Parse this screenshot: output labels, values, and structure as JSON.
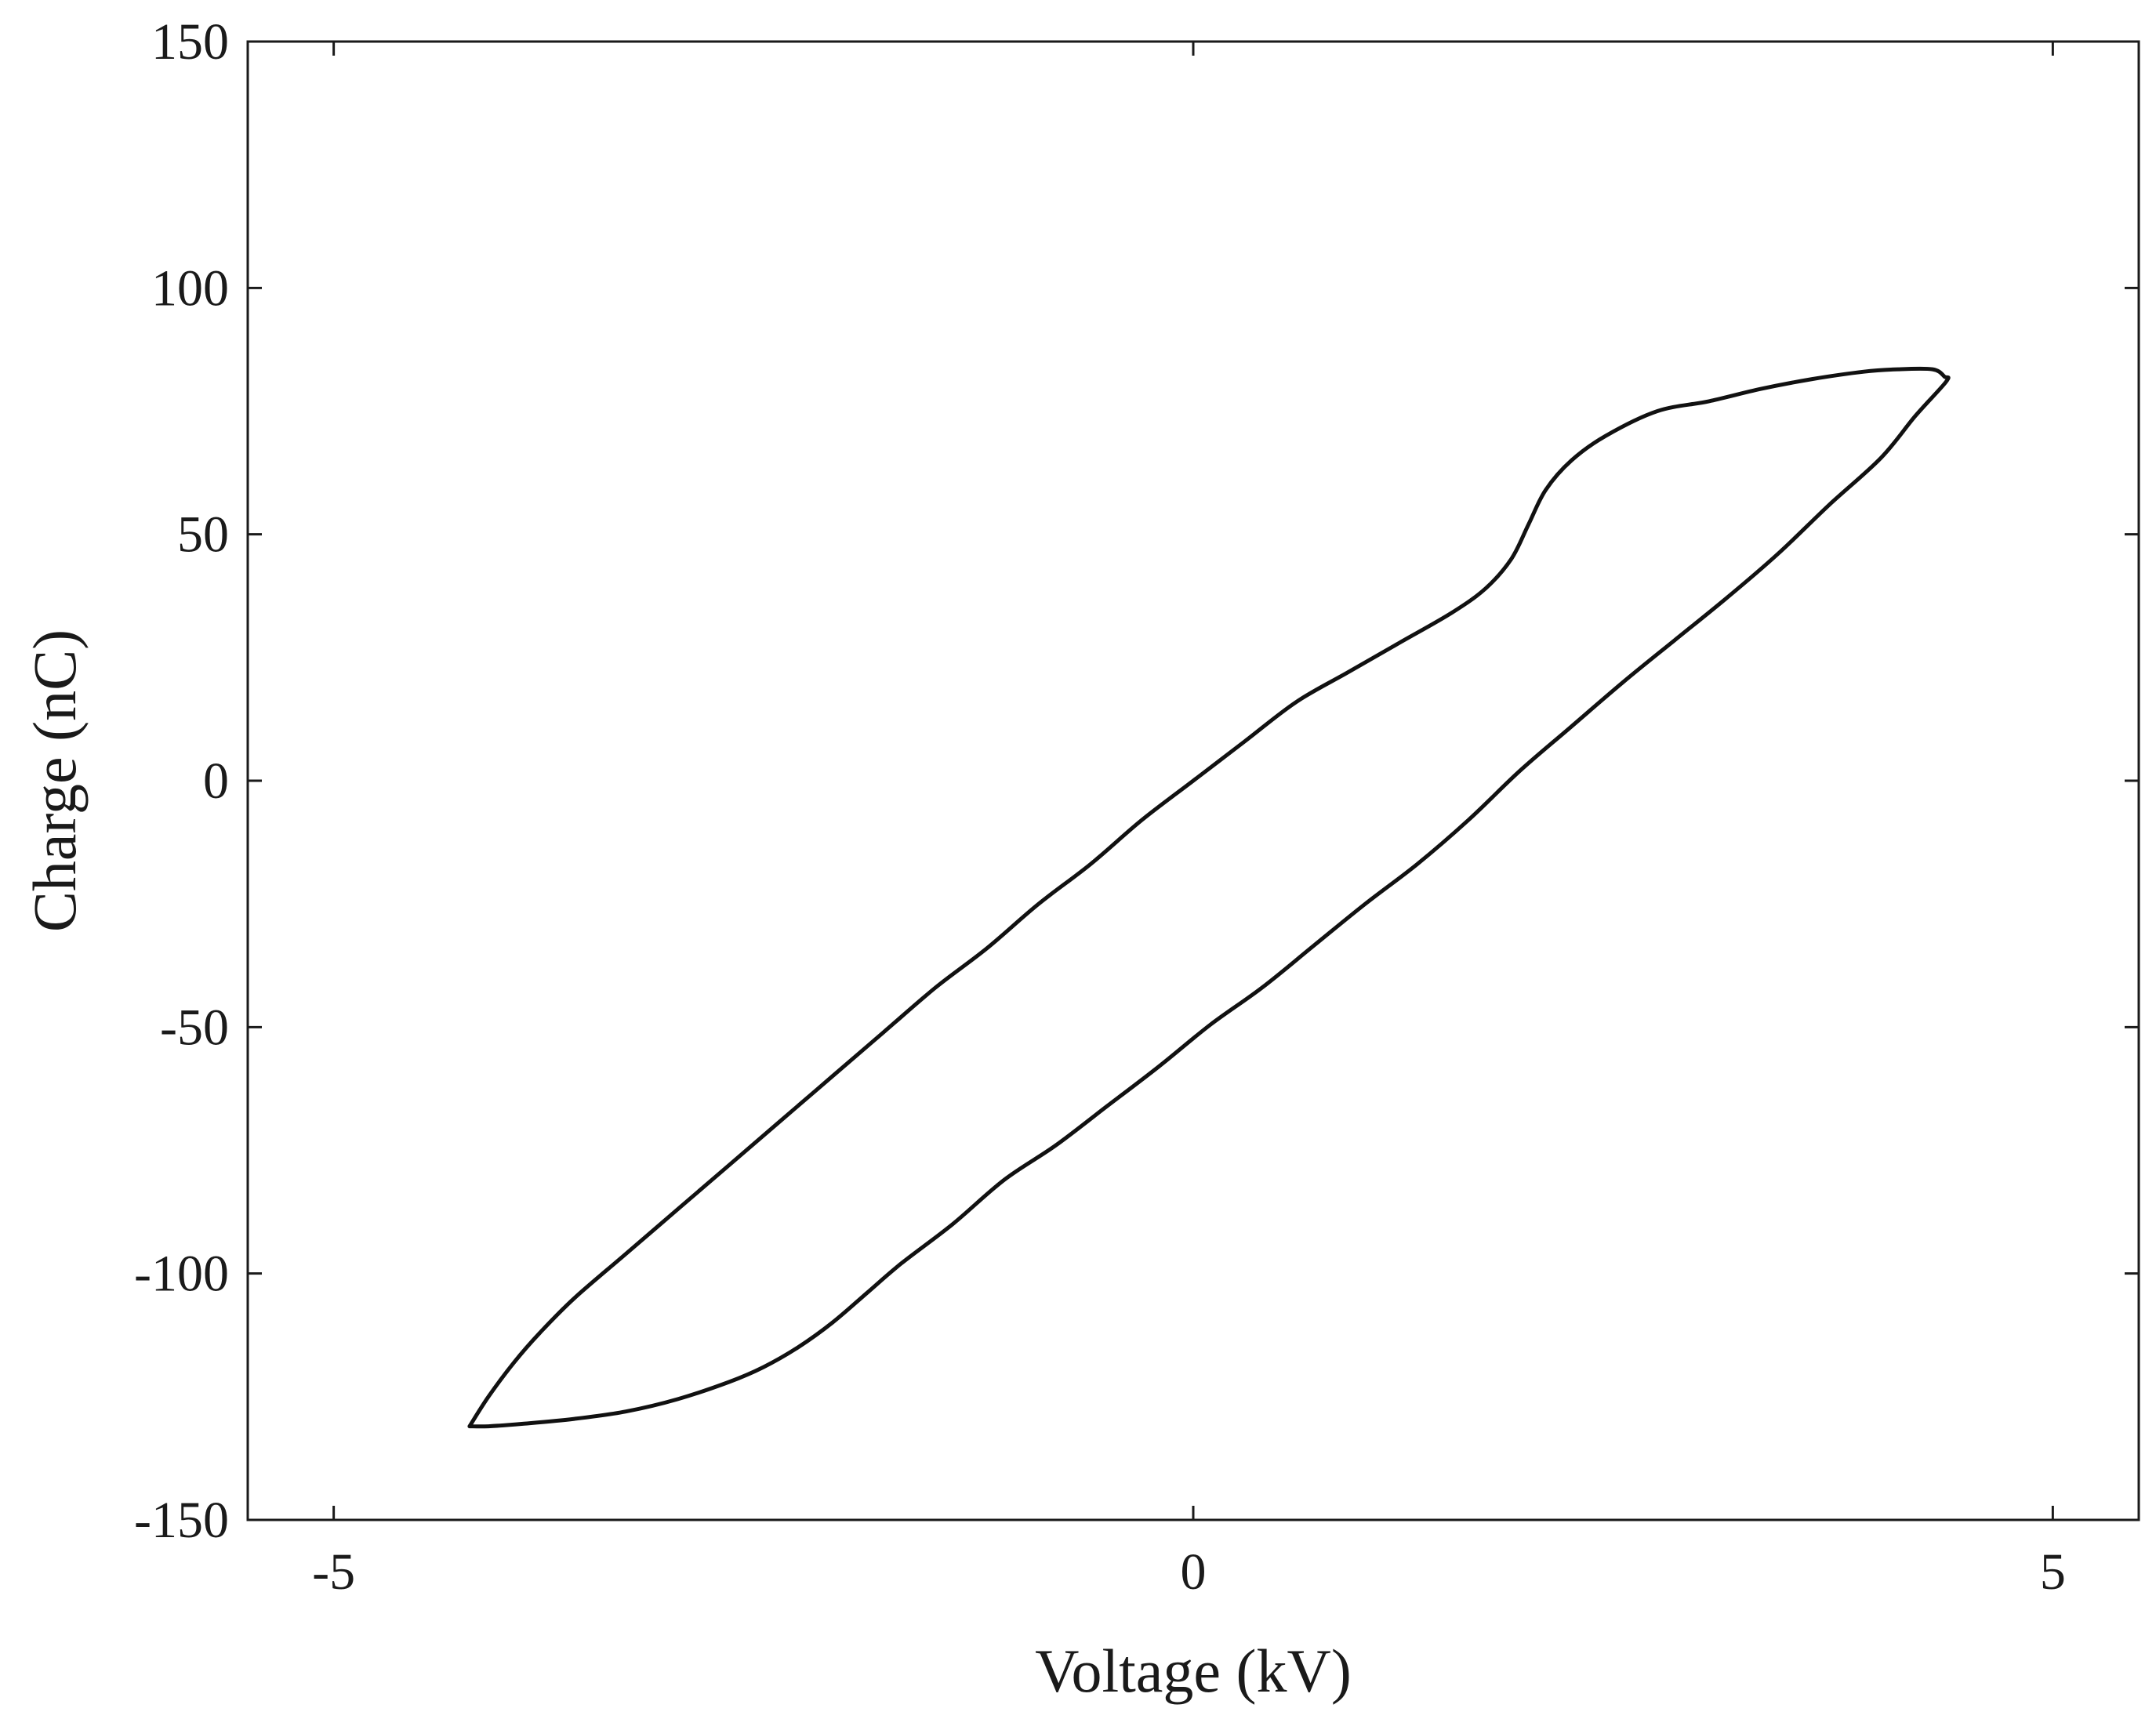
{
  "chart_data": {
    "type": "line",
    "title": "",
    "xlabel": "Voltage (kV)",
    "ylabel": "Charge (nC)",
    "xlim": [
      -5.5,
      5.5
    ],
    "ylim": [
      -150,
      150
    ],
    "x_ticks": [
      -5,
      0,
      5
    ],
    "y_ticks": [
      -150,
      -100,
      -50,
      0,
      50,
      100,
      150
    ],
    "x_tick_labels": [
      "-5",
      "0",
      "5"
    ],
    "y_tick_labels": [
      "-150",
      "-100",
      "-50",
      "0",
      "50",
      "100",
      "150"
    ],
    "grid": false,
    "box": true,
    "line_color": "#111111",
    "series": [
      {
        "x": [
          -4.21,
          -4.1,
          -3.95,
          -3.8,
          -3.6,
          -3.3,
          -3.0,
          -2.7,
          -2.4,
          -2.1,
          -1.8,
          -1.5,
          -1.2,
          -0.9,
          -0.6,
          -0.3,
          0.0,
          0.3,
          0.6,
          0.9,
          1.2,
          1.5,
          1.7,
          1.85,
          1.95,
          2.05,
          2.2,
          2.4,
          2.7,
          3.0,
          3.3,
          3.6,
          3.9,
          4.1,
          4.3,
          4.37,
          4.38,
          4.2,
          4.0,
          3.7,
          3.4,
          3.1,
          2.8,
          2.5,
          2.2,
          1.9,
          1.6,
          1.3,
          1.0,
          0.7,
          0.4,
          0.1,
          -0.2,
          -0.5,
          -0.8,
          -1.1,
          -1.4,
          -1.7,
          -1.9,
          -2.1,
          -2.3,
          -2.5,
          -2.7,
          -3.0,
          -3.3,
          -3.6,
          -3.9,
          -4.1,
          -4.21
        ],
        "y": [
          -131,
          -125,
          -118,
          -112,
          -105,
          -96,
          -87,
          -78,
          -69,
          -60,
          -51,
          -42,
          -34,
          -25,
          -17,
          -8,
          0,
          8,
          16,
          22,
          28,
          34,
          39,
          45,
          52,
          59,
          65,
          70,
          75,
          77,
          79.5,
          81.5,
          83,
          83.5,
          83.5,
          82,
          81,
          74,
          65.5,
          56,
          46,
          37,
          28.5,
          20,
          11,
          2,
          -8,
          -17,
          -25,
          -33.5,
          -42,
          -49.5,
          -58,
          -66,
          -74,
          -81,
          -90,
          -98,
          -104,
          -110,
          -115,
          -119,
          -122,
          -125.5,
          -128,
          -129.5,
          -130.5,
          -131,
          -131
        ]
      }
    ]
  }
}
